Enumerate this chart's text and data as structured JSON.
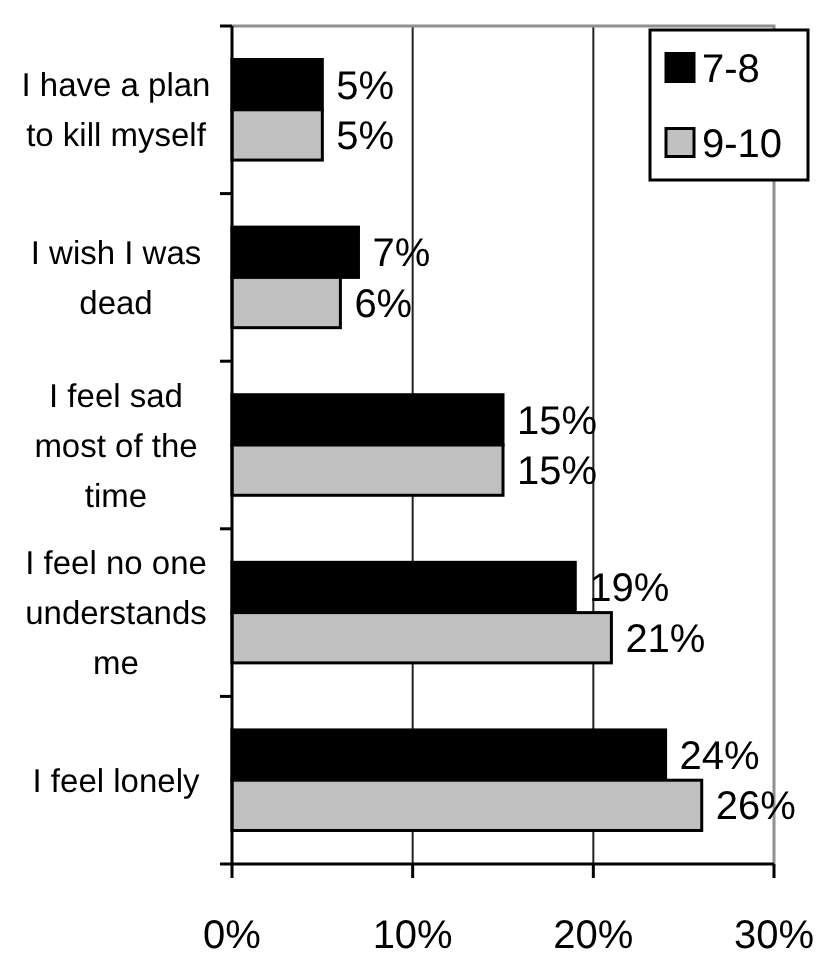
{
  "chart_data": {
    "type": "bar",
    "orientation": "horizontal",
    "categories": [
      "I have a plan to kill myself",
      "I wish I was dead",
      "I feel sad most of the time",
      "I feel no one understands me",
      "I feel lonely"
    ],
    "series": [
      {
        "name": "7-8",
        "color": "#000000",
        "values": [
          5,
          7,
          15,
          19,
          24
        ],
        "value_labels": [
          "5%",
          "7%",
          "15%",
          "19%",
          "24%"
        ]
      },
      {
        "name": "9-10",
        "color": "#c0c0c0",
        "values": [
          5,
          6,
          15,
          21,
          26
        ],
        "value_labels": [
          "5%",
          "6%",
          "15%",
          "21%",
          "26%"
        ]
      }
    ],
    "xlim": [
      0,
      30
    ],
    "xticks": [
      {
        "value": 0,
        "label": "0%"
      },
      {
        "value": 10,
        "label": "10%"
      },
      {
        "value": 20,
        "label": "20%"
      },
      {
        "value": 30,
        "label": "30%"
      }
    ],
    "grid": "x",
    "legend": "top right"
  }
}
